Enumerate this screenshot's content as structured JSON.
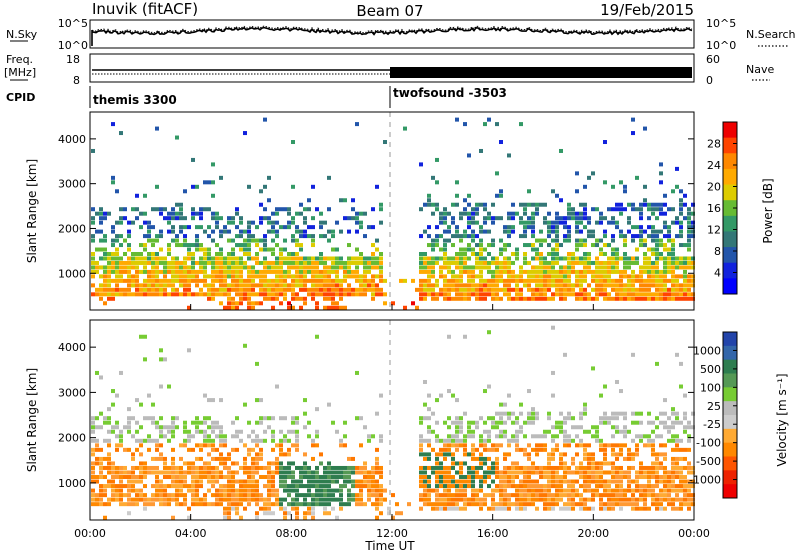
{
  "header": {
    "station": "Inuvik (fitACF)",
    "beam": "Beam 07",
    "date": "19/Feb/2015"
  },
  "panels": {
    "nsky": {
      "label": "N.Sky",
      "ticks_left": [
        "10^5",
        "10^0"
      ],
      "right_label": "N.Search",
      "ticks_right": [
        "10^5",
        "10^0"
      ]
    },
    "freq": {
      "label_top": "Freq.",
      "label_unit": "[MHz]",
      "ticks_left": [
        "18",
        "8"
      ],
      "right_label": "Nave",
      "ticks_right": [
        "60",
        "0"
      ]
    },
    "cpid": {
      "label": "CPID",
      "programs": [
        "themis 3300",
        "twofsound -3503"
      ]
    }
  },
  "chart_data": [
    {
      "type": "heatmap",
      "name": "power",
      "ylabel": "Slant Range [km]",
      "yticks": [
        "1000",
        "2000",
        "3000",
        "4000"
      ],
      "ylim": [
        180,
        4600
      ],
      "xlim": [
        0,
        24
      ],
      "colorbar": {
        "label": "Power [dB]",
        "ticks": [
          "28",
          "24",
          "20",
          "16",
          "12",
          "8",
          "4"
        ],
        "colors": [
          "#ee0000",
          "#ff4400",
          "#ff8800",
          "#ffaa00",
          "#ddcc00",
          "#66bb33",
          "#339966",
          "#337777",
          "#2255aa",
          "#1122dd",
          "#0000ff"
        ],
        "range": [
          0,
          32
        ]
      }
    },
    {
      "type": "heatmap",
      "name": "velocity",
      "ylabel": "Slant Range [km]",
      "yticks": [
        "1000",
        "2000",
        "3000",
        "4000"
      ],
      "ylim": [
        180,
        4600
      ],
      "xlim": [
        0,
        24
      ],
      "xticks": [
        "00:00",
        "04:00",
        "08:00",
        "12:00",
        "16:00",
        "20:00",
        "00:00"
      ],
      "xlabel": "Time UT",
      "colorbar": {
        "label": "Velocity [m s⁻¹]",
        "ticks": [
          "1000",
          "500",
          "100",
          "25",
          "-25",
          "-100",
          "-500",
          "-1000"
        ],
        "colors": [
          "#2244aa",
          "#3366aa",
          "#2e7d4f",
          "#559955",
          "#77cc33",
          "#bbbbbb",
          "#cccccc",
          "#ffaa33",
          "#ff8800",
          "#ff5500",
          "#ee2200",
          "#ee0000"
        ]
      }
    }
  ]
}
